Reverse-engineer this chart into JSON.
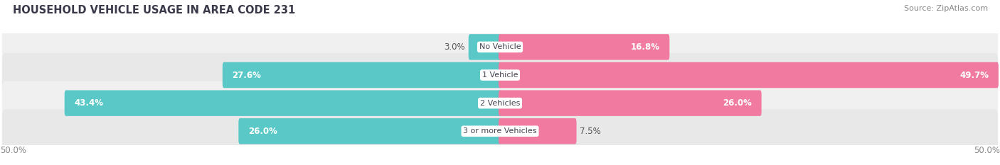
{
  "title": "HOUSEHOLD VEHICLE USAGE IN AREA CODE 231",
  "source": "Source: ZipAtlas.com",
  "categories": [
    "No Vehicle",
    "1 Vehicle",
    "2 Vehicles",
    "3 or more Vehicles"
  ],
  "owner_values": [
    3.0,
    27.6,
    43.4,
    26.0
  ],
  "renter_values": [
    16.8,
    49.7,
    26.0,
    7.5
  ],
  "owner_color": "#5bc8c8",
  "renter_color": "#f07aa0",
  "row_bg_colors": [
    "#f0f0f0",
    "#e8e8e8",
    "#f0f0f0",
    "#e8e8e8"
  ],
  "axis_min": -50.0,
  "axis_max": 50.0,
  "title_fontsize": 10.5,
  "source_fontsize": 8,
  "label_fontsize": 8.5,
  "category_fontsize": 8,
  "bar_height": 0.62,
  "title_color": "#3a3a4a",
  "source_color": "#888888",
  "label_color_dark": "#555555",
  "label_color_light": "white",
  "axis_label_color": "#888888",
  "inside_threshold": 8
}
